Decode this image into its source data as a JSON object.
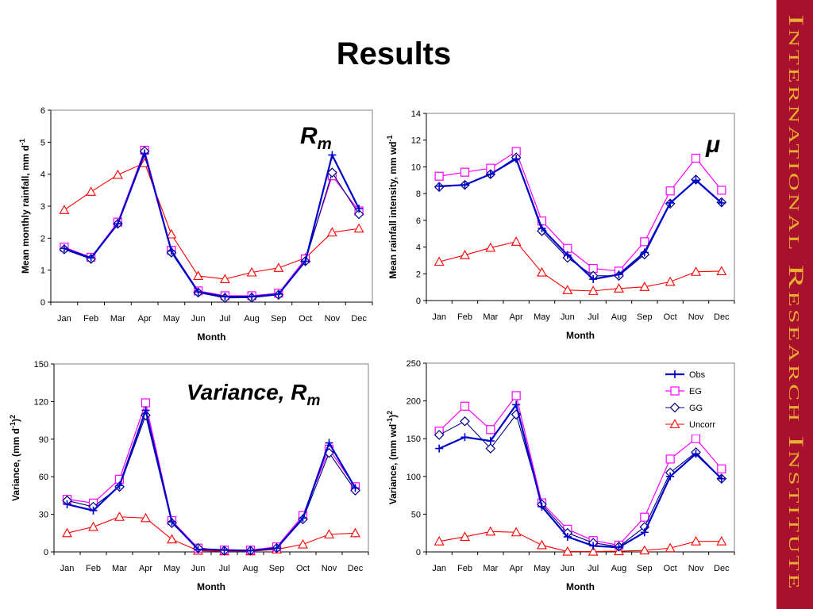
{
  "slide": {
    "title": "Results",
    "sidebar_text": "International Research Institute",
    "sidebar_color": "#a8102e"
  },
  "colors": {
    "Obs": "#0000cc",
    "EG": "#ff00ff",
    "GG": "#000080",
    "Uncorr": "#ff0000"
  },
  "legend": {
    "placement": "top-right",
    "chart_index": 3,
    "entries": [
      "Obs",
      "EG",
      "GG",
      "Uncorr"
    ]
  },
  "chart_data": [
    {
      "type": "line",
      "annotation": {
        "main": "R",
        "sub": "m"
      },
      "categories": [
        "Jan",
        "Feb",
        "Mar",
        "Apr",
        "May",
        "Jun",
        "Jul",
        "Aug",
        "Sep",
        "Oct",
        "Nov",
        "Dec"
      ],
      "xlabel": "Month",
      "ylabel": "Mean monthly rainfall, mm d",
      "ylabel_sup": "-1",
      "ylim": [
        0,
        6
      ],
      "yticks": [
        0,
        1,
        2,
        3,
        4,
        5,
        6
      ],
      "grid": false,
      "series": [
        {
          "name": "Obs",
          "values": [
            1.68,
            1.38,
            2.45,
            4.65,
            1.6,
            0.32,
            0.17,
            0.17,
            0.25,
            1.28,
            4.6,
            2.92
          ]
        },
        {
          "name": "EG",
          "values": [
            1.72,
            1.4,
            2.5,
            4.75,
            1.62,
            0.35,
            0.2,
            0.2,
            0.28,
            1.35,
            3.95,
            2.85
          ]
        },
        {
          "name": "GG",
          "values": [
            1.65,
            1.35,
            2.45,
            4.72,
            1.55,
            0.3,
            0.13,
            0.14,
            0.23,
            1.28,
            4.05,
            2.75
          ]
        },
        {
          "name": "Uncorr",
          "values": [
            2.88,
            3.45,
            3.98,
            4.35,
            2.12,
            0.82,
            0.72,
            0.93,
            1.07,
            1.38,
            2.18,
            2.3
          ]
        }
      ]
    },
    {
      "type": "line",
      "annotation": {
        "main": "μ",
        "sub": ""
      },
      "categories": [
        "Jan",
        "Feb",
        "Mar",
        "Apr",
        "May",
        "Jun",
        "Jul",
        "Aug",
        "Sep",
        "Oct",
        "Nov",
        "Dec"
      ],
      "xlabel": "Month",
      "ylabel": "Mean rainfall intensity, mm wd",
      "ylabel_sup": "-1",
      "ylim": [
        0,
        14
      ],
      "yticks": [
        0,
        2,
        4,
        6,
        8,
        10,
        12,
        14
      ],
      "grid": false,
      "series": [
        {
          "name": "Obs",
          "values": [
            8.55,
            8.65,
            9.45,
            10.6,
            5.4,
            3.4,
            1.6,
            1.95,
            3.6,
            7.3,
            9.0,
            7.3
          ]
        },
        {
          "name": "EG",
          "values": [
            9.3,
            9.6,
            9.9,
            11.15,
            5.95,
            3.9,
            2.4,
            2.2,
            4.4,
            8.2,
            10.65,
            8.25
          ]
        },
        {
          "name": "GG",
          "values": [
            8.5,
            8.65,
            9.45,
            10.7,
            5.2,
            3.2,
            1.85,
            1.85,
            3.45,
            7.25,
            9.05,
            7.35
          ]
        },
        {
          "name": "Uncorr",
          "values": [
            2.9,
            3.4,
            3.95,
            4.4,
            2.1,
            0.78,
            0.72,
            0.9,
            1.02,
            1.4,
            2.15,
            2.2
          ]
        }
      ]
    },
    {
      "type": "line",
      "annotation": {
        "main": "Variance, R",
        "sub": "m"
      },
      "categories": [
        "Jan",
        "Feb",
        "Mar",
        "Apr",
        "May",
        "Jun",
        "Jul",
        "Aug",
        "Sep",
        "Oct",
        "Nov",
        "Dec"
      ],
      "xlabel": "Month",
      "ylabel": "Variance, (mm d",
      "ylabel_sup": "-1",
      "ylabel_tail": ")",
      "ylabel_tail_sup": "2",
      "ylim": [
        0,
        150
      ],
      "yticks": [
        0,
        30,
        60,
        90,
        120,
        150
      ],
      "grid": false,
      "series": [
        {
          "name": "Obs",
          "values": [
            38,
            33,
            53,
            113,
            24,
            2,
            1.5,
            1,
            3,
            27,
            87,
            51
          ]
        },
        {
          "name": "EG",
          "values": [
            42,
            39,
            58,
            119,
            25,
            3,
            1.5,
            1.5,
            4,
            29,
            82,
            52
          ]
        },
        {
          "name": "GG",
          "values": [
            41,
            36,
            52,
            109,
            23,
            3,
            1,
            1,
            3,
            26,
            79,
            49
          ]
        },
        {
          "name": "Uncorr",
          "values": [
            15,
            20,
            28,
            27,
            10,
            1,
            0.5,
            0.5,
            2,
            6,
            14,
            15
          ]
        }
      ]
    },
    {
      "type": "line",
      "annotation": {
        "main": "",
        "sub": ""
      },
      "categories": [
        "Jan",
        "Feb",
        "Mar",
        "Apr",
        "May",
        "Jun",
        "Jul",
        "Aug",
        "Sep",
        "Oct",
        "Nov",
        "Dec"
      ],
      "xlabel": "Month",
      "ylabel": "Variance, (mm wd",
      "ylabel_sup": "-1",
      "ylabel_tail": ")",
      "ylabel_tail_sup": "2",
      "ylim": [
        0,
        250
      ],
      "yticks": [
        0,
        50,
        100,
        150,
        200,
        250
      ],
      "grid": false,
      "series": [
        {
          "name": "Obs",
          "values": [
            137,
            152,
            147,
            195,
            60,
            20,
            8,
            6,
            26,
            100,
            130,
            97
          ]
        },
        {
          "name": "EG",
          "values": [
            160,
            193,
            162,
            207,
            65,
            30,
            15,
            9,
            46,
            123,
            150,
            110
          ]
        },
        {
          "name": "GG",
          "values": [
            155,
            173,
            137,
            182,
            63,
            25,
            12,
            7,
            33,
            105,
            132,
            97
          ]
        },
        {
          "name": "Uncorr",
          "values": [
            14,
            20,
            27,
            26,
            9,
            0.5,
            0.5,
            1,
            2,
            5,
            14,
            14
          ]
        }
      ]
    }
  ]
}
